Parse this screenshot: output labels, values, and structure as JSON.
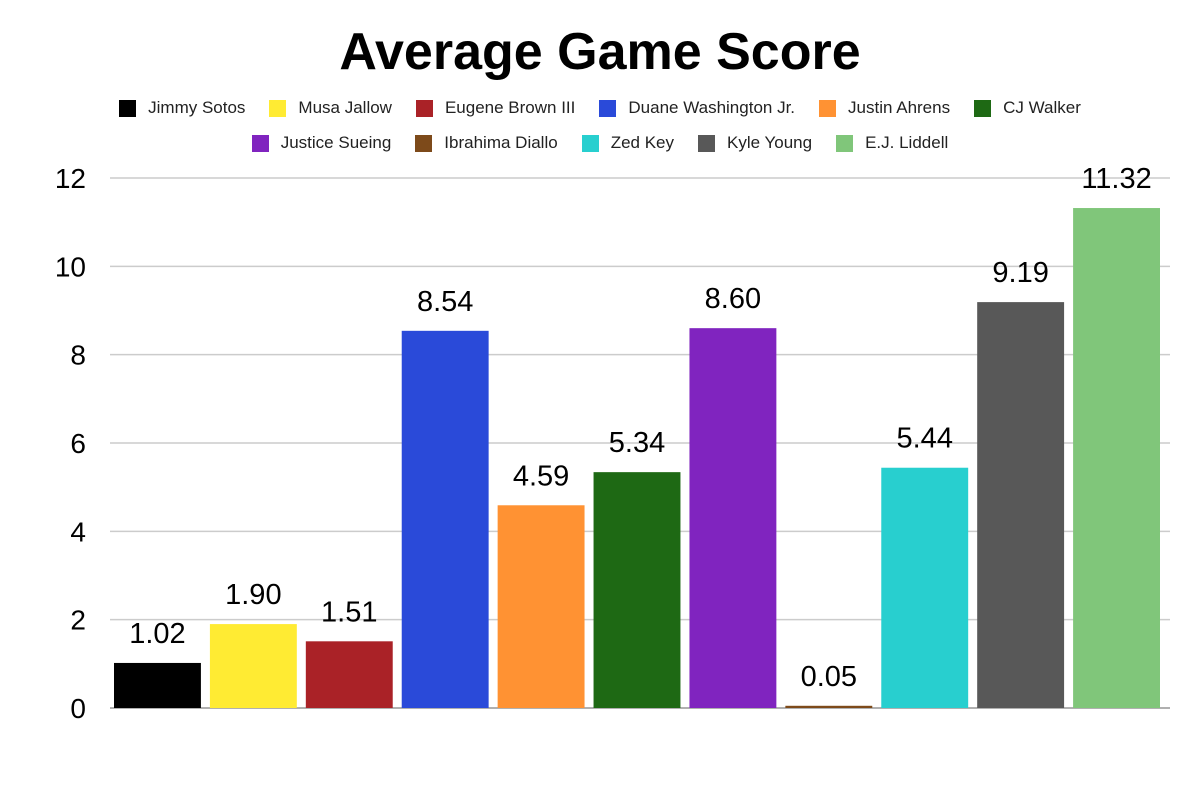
{
  "chart_data": {
    "type": "bar",
    "title": "Average Game Score",
    "xlabel": "",
    "ylabel": "",
    "ylim": [
      0,
      12
    ],
    "yticks": [
      0,
      2,
      4,
      6,
      8,
      10,
      12
    ],
    "grid": true,
    "legend_position": "top",
    "series": [
      {
        "name": "Jimmy Sotos",
        "value": 1.02,
        "label": "1.02",
        "color": "#000000"
      },
      {
        "name": "Musa Jallow",
        "value": 1.9,
        "label": "1.90",
        "color": "#FFEB33"
      },
      {
        "name": "Eugene Brown III",
        "value": 1.51,
        "label": "1.51",
        "color": "#AA2227"
      },
      {
        "name": "Duane Washington Jr.",
        "value": 8.54,
        "label": "8.54",
        "color": "#2A4AD9"
      },
      {
        "name": "Justin Ahrens",
        "value": 4.59,
        "label": "4.59",
        "color": "#FF9233"
      },
      {
        "name": "CJ Walker",
        "value": 5.34,
        "label": "5.34",
        "color": "#1E6914"
      },
      {
        "name": "Justice Sueing",
        "value": 8.6,
        "label": "8.60",
        "color": "#8024BF"
      },
      {
        "name": "Ibrahima Diallo",
        "value": 0.05,
        "label": "0.05",
        "color": "#7D4A1A"
      },
      {
        "name": "Zed Key",
        "value": 5.44,
        "label": "5.44",
        "color": "#28CFCF"
      },
      {
        "name": "Kyle Young",
        "value": 9.19,
        "label": "9.19",
        "color": "#585858"
      },
      {
        "name": "E.J. Liddell",
        "value": 11.32,
        "label": "11.32",
        "color": "#80C67A"
      }
    ]
  }
}
